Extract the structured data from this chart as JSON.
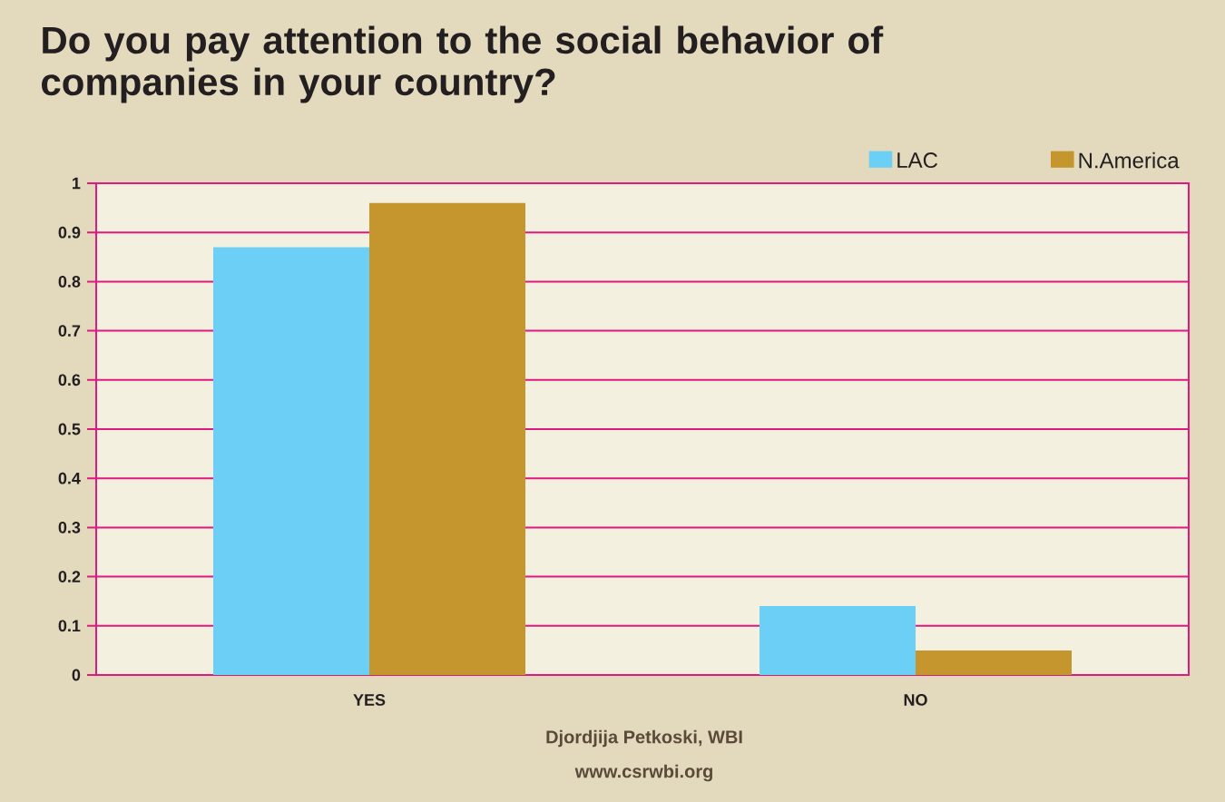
{
  "chart_data": {
    "type": "bar",
    "title": "Do you pay attention to the social behavior of companies in your country?",
    "categories": [
      "YES",
      "NO"
    ],
    "series": [
      {
        "name": "LAC",
        "color": "#6ccff6",
        "values": [
          0.87,
          0.14
        ]
      },
      {
        "name": "N.America",
        "color": "#c4962d",
        "values": [
          0.96,
          0.05
        ]
      }
    ],
    "ylim": [
      0,
      1
    ],
    "yticks": [
      0,
      0.1,
      0.2,
      0.3,
      0.4,
      0.5,
      0.6,
      0.7,
      0.8,
      0.9,
      1
    ],
    "grid": "y",
    "legend": "top right",
    "annotations": [
      "Djordjija  Petkoski, WBI",
      "www.csrwbi.org"
    ]
  }
}
